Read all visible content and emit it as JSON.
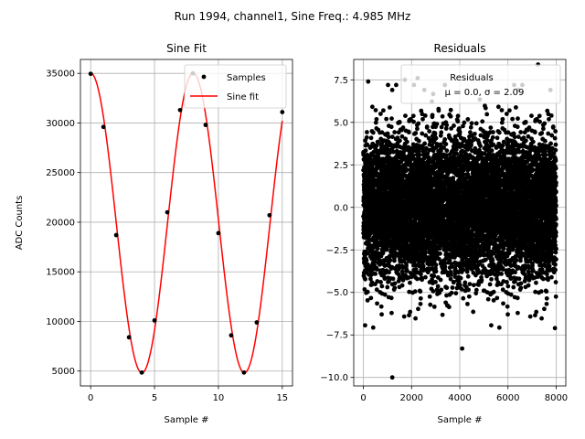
{
  "figure": {
    "suptitle": "Run 1994, channel1, Sine Freq.: 4.985 MHz"
  },
  "chart_data": [
    {
      "type": "scatter+line",
      "title": "Sine Fit",
      "xlabel": "Sample #",
      "ylabel": "ADC Counts",
      "xlim": [
        -0.8,
        15.8
      ],
      "ylim": [
        3500,
        36400
      ],
      "xticks": [
        0,
        5,
        10,
        15
      ],
      "yticks": [
        5000,
        10000,
        15000,
        20000,
        25000,
        30000,
        35000
      ],
      "grid": true,
      "legend": {
        "placement": "top-right",
        "entries": [
          "Samples",
          "Sine fit"
        ]
      },
      "samples": {
        "name": "Samples",
        "color": "#000000",
        "x": [
          0,
          1,
          2,
          3,
          4,
          5,
          6,
          7,
          8,
          9,
          10,
          11,
          12,
          13,
          14,
          15
        ],
        "y": [
          34950,
          29600,
          18700,
          8400,
          4850,
          10100,
          21000,
          31300,
          35000,
          29800,
          18900,
          8600,
          4850,
          9900,
          20700,
          31100
        ]
      },
      "fit": {
        "name": "Sine fit",
        "color": "#ff0000",
        "model": "offset + amplitude*sin(2*pi*f*x + phase)",
        "offset": 19925,
        "amplitude": 15100,
        "f": 0.12462,
        "phase": 1.571,
        "x_range": [
          0,
          15
        ]
      }
    },
    {
      "type": "scatter",
      "title": "Residuals",
      "xlabel": "Sample #",
      "ylabel": "",
      "xlim": [
        -400,
        8400
      ],
      "ylim": [
        -10.5,
        8.7
      ],
      "xticks": [
        0,
        2000,
        4000,
        6000,
        8000
      ],
      "yticks": [
        -10.0,
        -7.5,
        -5.0,
        -2.5,
        0.0,
        2.5,
        5.0,
        7.5
      ],
      "grid": true,
      "legend": {
        "placement": "top-right",
        "entries": [
          "Residuals",
          "μ = 0.0, σ = 2.09"
        ]
      },
      "series": {
        "name": "Residuals",
        "color": "#000000",
        "n_points": 8000,
        "mean": 0.0,
        "std": 2.09,
        "x_range": [
          0,
          8000
        ]
      },
      "outliers": [
        {
          "x": 1200,
          "y": -10.0
        },
        {
          "x": 4100,
          "y": -8.3
        },
        {
          "x": 7250,
          "y": 8.4
        },
        {
          "x": 200,
          "y": 7.4
        },
        {
          "x": 1720,
          "y": 7.5
        },
        {
          "x": 2100,
          "y": 7.2
        },
        {
          "x": 2250,
          "y": 7.6
        },
        {
          "x": 7950,
          "y": -7.1
        }
      ]
    }
  ],
  "colors": {
    "fit_line": "#ff0000",
    "marker": "#000000",
    "grid": "#b0b0b0"
  }
}
